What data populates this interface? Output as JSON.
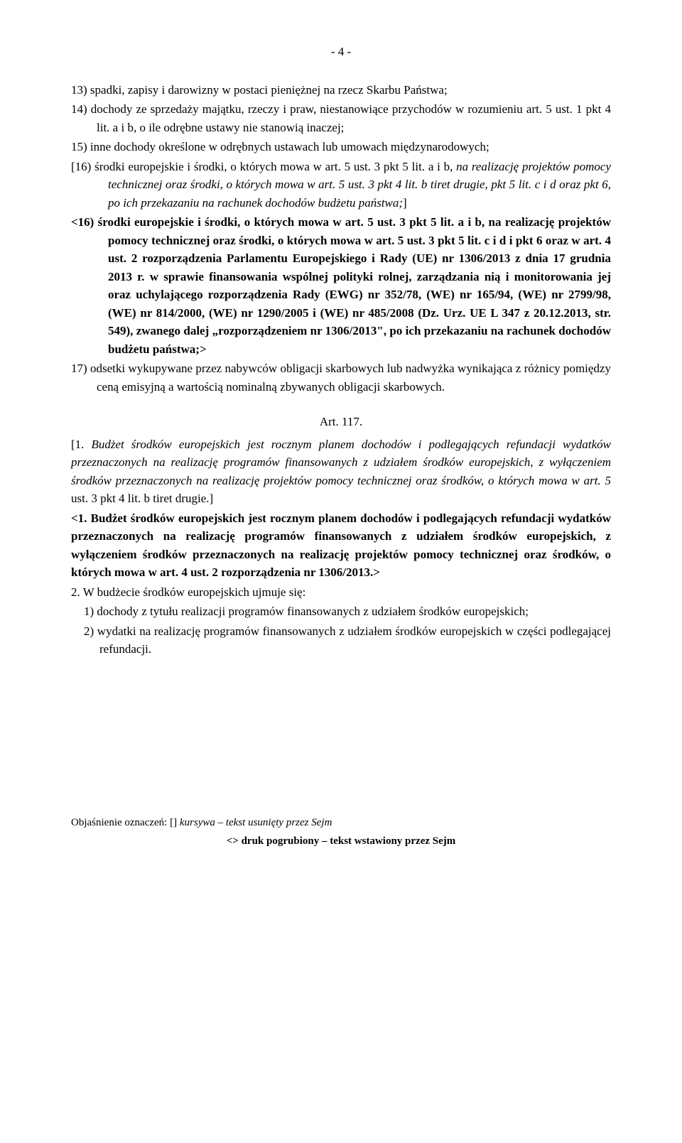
{
  "page_number": "- 4 -",
  "item13": "13)  spadki, zapisy i darowizny w postaci pieniężnej na rzecz Skarbu Państwa;",
  "item14": "14)  dochody ze sprzedaży majątku, rzeczy i praw, niestanowiące przychodów w rozumieniu art. 5 ust. 1 pkt 4 lit. a i b, o ile odrębne ustawy nie stanowią inaczej;",
  "item15": "15)  inne dochody określone w odrębnych ustawach lub umowach międzynarodowych;",
  "item16_bracket_lead": "[16) środki europejskie i środki, o których mowa w art. 5 ust. 3 pkt 5 lit. a i b, ",
  "item16_bracket_italic": "na realizację projektów pomocy technicznej oraz środki, o których mowa w art. 5 ust. 3 pkt 4 lit. b tiret drugie, pkt 5 lit. c i d oraz pkt 6, po ich przekazaniu na rachunek dochodów budżetu państwa;",
  "item16_bracket_close": "]",
  "item16_angle": "<16) środki europejskie i środki, o których mowa w art. 5 ust. 3 pkt 5 lit. a i b, na realizację projektów pomocy technicznej oraz środki, o których mowa w art. 5 ust. 3 pkt 5 lit. c i d i pkt 6 oraz w art. 4 ust. 2 rozporządzenia Parlamentu Europejskiego i Rady (UE) nr 1306/2013 z dnia 17 grudnia 2013 r. w sprawie finansowania wspólnej polityki rolnej, zarządzania nią i monitorowania jej oraz uchylającego rozporządzenia Rady (EWG) nr 352/78, (WE) nr 165/94, (WE) nr 2799/98, (WE) nr 814/2000, (WE) nr 1290/2005 i (WE) nr 485/2008 (Dz. Urz. UE L 347 z 20.12.2013, str. 549), zwanego dalej „rozporządzeniem nr 1306/2013\", po ich przekazaniu na rachunek dochodów budżetu państwa;>",
  "item17": "17)  odsetki wykupywane przez nabywców obligacji skarbowych lub nadwyżka wynikająca z różnicy pomiędzy ceną emisyjną a wartością nominalną zbywanych obligacji skarbowych.",
  "art_heading": "Art. 117.",
  "art_p1_lead": "[1. ",
  "art_p1_italic": "Budżet środków europejskich jest rocznym planem dochodów i podlegających refundacji wydatków przeznaczonych na realizację programów finansowanych z udziałem środków europejskich, z wyłączeniem środków przeznaczonych na realizację projektów pomocy technicznej oraz środków, o których mowa w art. 5 ",
  "art_p1_roman": "ust. 3 pkt 4 lit. b tiret drugie.",
  "art_p1_close": "]",
  "art_p1_angle": "<1. Budżet środków europejskich jest rocznym planem dochodów i podlegających refundacji wydatków przeznaczonych na realizację programów finansowanych z udziałem środków europejskich, z wyłączeniem środków przeznaczonych na realizację projektów pomocy technicznej oraz środków, o których mowa w art. 4 ust. 2 rozporządzenia nr 1306/2013.>",
  "art_p2": "2. W budżecie środków europejskich ujmuje się:",
  "art_p2_1": "1)  dochody z tytułu realizacji programów finansowanych z udziałem środków europejskich;",
  "art_p2_2": "2)  wydatki na realizację programów finansowanych z udziałem środków europejskich w części podlegającej refundacji.",
  "footer_label": "Objaśnienie oznaczeń:  ",
  "footer_bracket": "[] ",
  "footer_kursywa": "kursywa ",
  "footer_deleted": "– tekst usunięty przez Sejm",
  "footer_line2_a": "<> ",
  "footer_line2_b": "druk pogrubiony ",
  "footer_line2_c": "– tekst wstawiony przez Sejm"
}
